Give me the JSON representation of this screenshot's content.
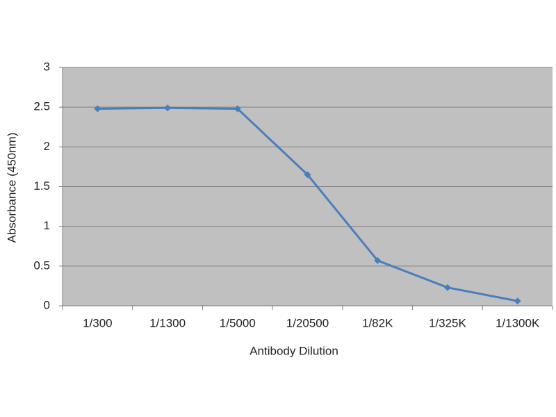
{
  "chart_data": {
    "type": "line",
    "x_label": "Antibody Dilution",
    "y_label": "Absorbance (450nm)",
    "categories": [
      "1/300",
      "1/1300",
      "1/5000",
      "1/20500",
      "1/82K",
      "1/325K",
      "1/1300K"
    ],
    "series": [
      {
        "name": "Absorbance",
        "color": "#4a7ebb",
        "values": [
          2.48,
          2.49,
          2.48,
          1.65,
          0.57,
          0.23,
          0.06
        ]
      }
    ],
    "ylim": [
      0,
      3
    ],
    "yticks": [
      0,
      0.5,
      1,
      1.5,
      2,
      2.5,
      3
    ],
    "grid": true,
    "plot_background": "#c0c0c0"
  }
}
